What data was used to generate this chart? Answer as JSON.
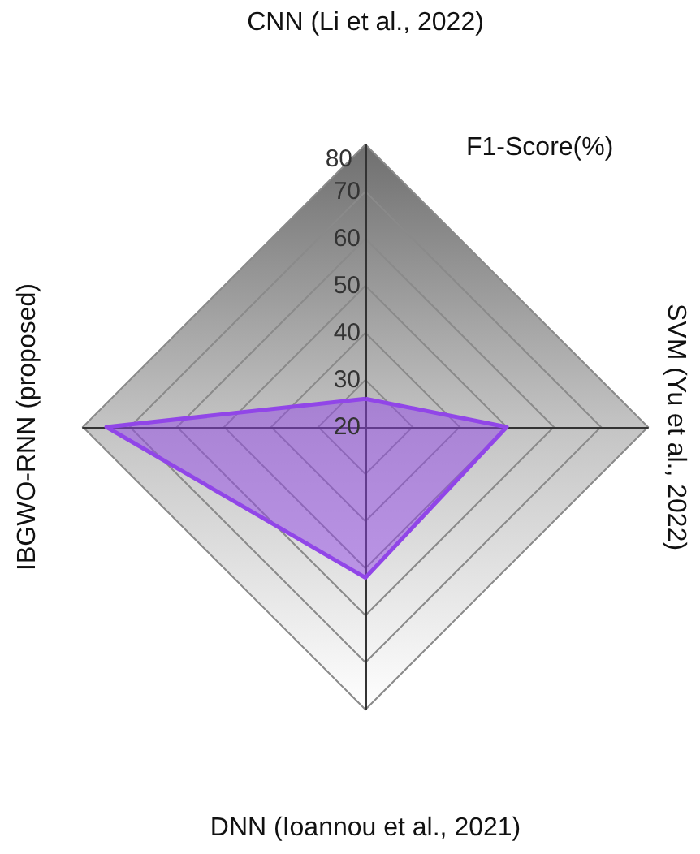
{
  "chart_data": {
    "type": "radar",
    "title": "F1-Score(%)",
    "categories": [
      "CNN (Li et al., 2022)",
      "SVM (Yu et al., 2022)",
      "DNN (Ioannou et al., 2021)",
      "IBGWO-RNN (proposed)"
    ],
    "series": [
      {
        "color": "#9146e8",
        "values": [
          26,
          50,
          52,
          75
        ]
      }
    ],
    "ylim": [
      20,
      80
    ],
    "yticks": [
      20,
      30,
      40,
      50,
      60,
      70,
      80
    ],
    "marker": "none"
  }
}
